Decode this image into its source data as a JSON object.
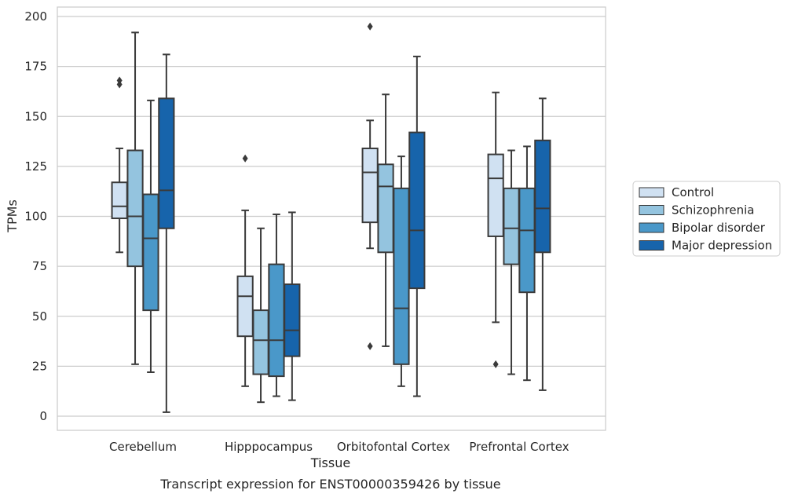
{
  "chart_data": {
    "type": "box",
    "title": "",
    "caption": "Transcript expression for ENST00000359426 by tissue",
    "xlabel": "Tissue",
    "ylabel": "TPMs",
    "ylim": [
      -7,
      208
    ],
    "yticks": [
      0,
      25,
      50,
      75,
      100,
      125,
      150,
      175,
      200
    ],
    "grid": "horizontal",
    "legend_position": "right",
    "categories": [
      "Cerebellum",
      "Hipppocampus",
      "Orbitofontal Cortex",
      "Prefrontal Cortex"
    ],
    "series": [
      {
        "name": "Control",
        "color": "#d0e1f2",
        "boxes": [
          {
            "whisker_low": 82,
            "q1": 99,
            "median": 105,
            "q3": 117,
            "whisker_high": 134,
            "outliers": [
              166,
              168
            ]
          },
          {
            "whisker_low": 15,
            "q1": 40,
            "median": 60,
            "q3": 70,
            "whisker_high": 103,
            "outliers": [
              129
            ]
          },
          {
            "whisker_low": 84,
            "q1": 97,
            "median": 122,
            "q3": 134,
            "whisker_high": 148,
            "outliers": [
              35,
              195
            ]
          },
          {
            "whisker_low": 47,
            "q1": 90,
            "median": 119,
            "q3": 131,
            "whisker_high": 162,
            "outliers": [
              26
            ]
          }
        ]
      },
      {
        "name": "Schizophrenia",
        "color": "#94c4df",
        "boxes": [
          {
            "whisker_low": 26,
            "q1": 75,
            "median": 100,
            "q3": 133,
            "whisker_high": 192,
            "outliers": []
          },
          {
            "whisker_low": 7,
            "q1": 21,
            "median": 38,
            "q3": 53,
            "whisker_high": 94,
            "outliers": []
          },
          {
            "whisker_low": 35,
            "q1": 82,
            "median": 115,
            "q3": 126,
            "whisker_high": 161,
            "outliers": []
          },
          {
            "whisker_low": 21,
            "q1": 76,
            "median": 94,
            "q3": 114,
            "whisker_high": 133,
            "outliers": []
          }
        ]
      },
      {
        "name": "Bipolar disorder",
        "color": "#4a98c9",
        "boxes": [
          {
            "whisker_low": 22,
            "q1": 53,
            "median": 89,
            "q3": 111,
            "whisker_high": 158,
            "outliers": []
          },
          {
            "whisker_low": 10,
            "q1": 20,
            "median": 38,
            "q3": 76,
            "whisker_high": 101,
            "outliers": []
          },
          {
            "whisker_low": 15,
            "q1": 26,
            "median": 54,
            "q3": 114,
            "whisker_high": 130,
            "outliers": []
          },
          {
            "whisker_low": 18,
            "q1": 62,
            "median": 93,
            "q3": 114,
            "whisker_high": 135,
            "outliers": []
          }
        ]
      },
      {
        "name": "Major depression",
        "color": "#1764ab",
        "boxes": [
          {
            "whisker_low": 2,
            "q1": 94,
            "median": 113,
            "q3": 159,
            "whisker_high": 181,
            "outliers": []
          },
          {
            "whisker_low": 8,
            "q1": 30,
            "median": 43,
            "q3": 66,
            "whisker_high": 102,
            "outliers": []
          },
          {
            "whisker_low": 10,
            "q1": 64,
            "median": 93,
            "q3": 142,
            "whisker_high": 180,
            "outliers": []
          },
          {
            "whisker_low": 13,
            "q1": 82,
            "median": 104,
            "q3": 138,
            "whisker_high": 159,
            "outliers": []
          }
        ]
      }
    ]
  }
}
